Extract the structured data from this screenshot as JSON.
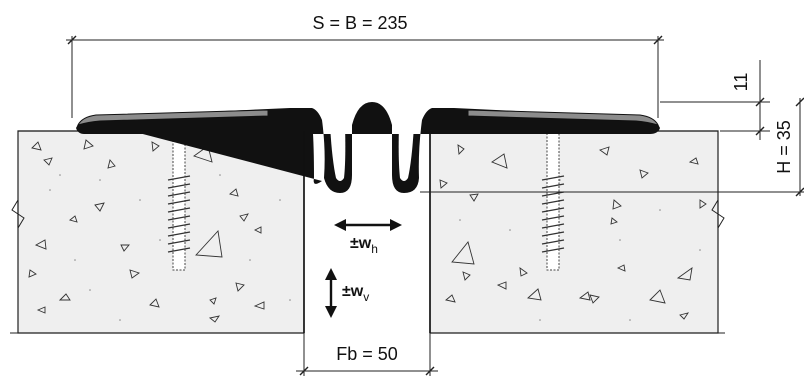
{
  "labels": {
    "width_dim": "S = B = 235",
    "thickness_dim": "11",
    "height_dim": "H = 35",
    "gap_dim": "Fb = 50",
    "horizontal_move_main": "±w",
    "horizontal_move_sub": "h",
    "vertical_move_main": "±w",
    "vertical_move_sub": "v"
  },
  "colors": {
    "rubber_profile": "#111111",
    "steel_plate": "#8c8c8c",
    "concrete": "#efefef",
    "line": "#222222"
  }
}
